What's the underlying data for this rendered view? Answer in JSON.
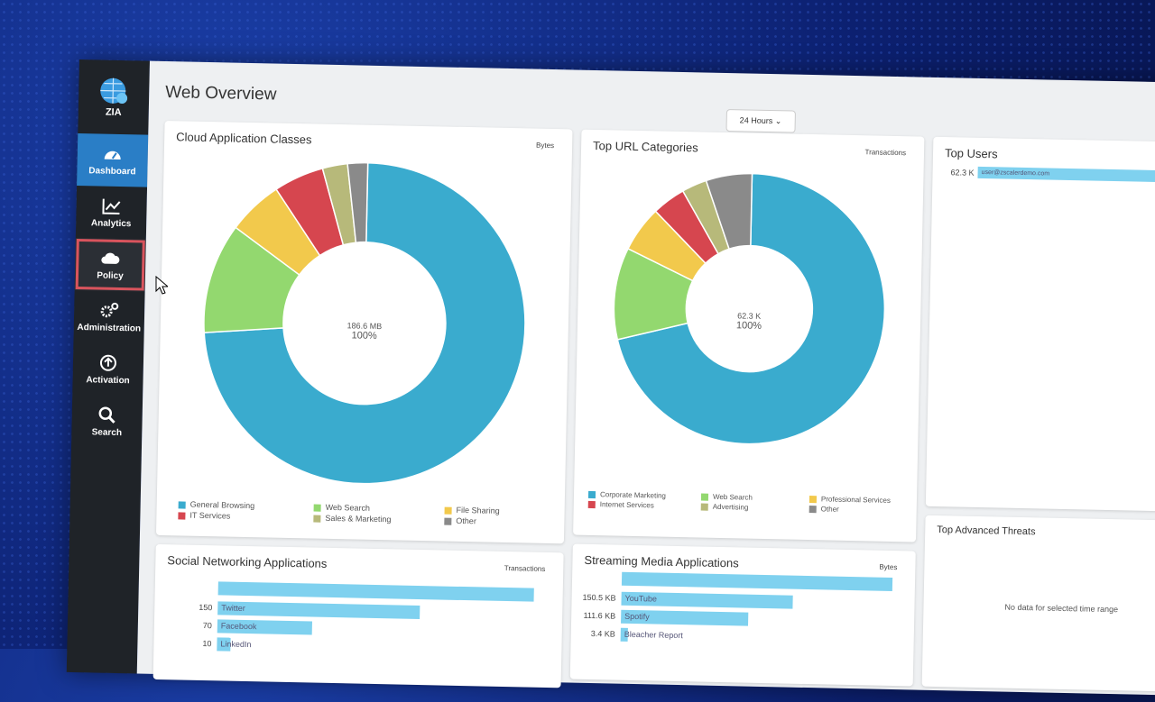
{
  "sidebar": {
    "logo": "ZIA",
    "items": [
      {
        "label": "Dashboard",
        "icon": "gauge-icon"
      },
      {
        "label": "Analytics",
        "icon": "chart-icon"
      },
      {
        "label": "Policy",
        "icon": "cloud-icon"
      },
      {
        "label": "Administration",
        "icon": "gears-icon"
      },
      {
        "label": "Activation",
        "icon": "upload-icon"
      },
      {
        "label": "Search",
        "icon": "search-icon"
      }
    ]
  },
  "header": {
    "title": "Web Overview",
    "time_range": "24 Hours"
  },
  "cloud_apps": {
    "title": "Cloud Application Classes",
    "unit": "Bytes",
    "total": "186.6 MB",
    "percent": "100%"
  },
  "url_categories": {
    "title": "Top URL Categories",
    "unit": "Transactions",
    "total": "62.3 K",
    "percent": "100%"
  },
  "top_users": {
    "title": "Top Users",
    "rows": [
      {
        "value": "62.3 K",
        "label": "user@zscalerdemo.com"
      }
    ]
  },
  "social": {
    "title": "Social Networking Applications",
    "unit": "Transactions"
  },
  "streaming": {
    "title": "Streaming Media Applications",
    "unit": "Bytes"
  },
  "threats": {
    "title": "Top Advanced Threats",
    "empty": "No data for selected time range"
  },
  "chart_data": [
    {
      "type": "pie",
      "title": "Cloud Application Classes",
      "categories": [
        "General Browsing",
        "Web Search",
        "File Sharing",
        "IT Services",
        "Sales & Marketing",
        "Other"
      ],
      "values": [
        73,
        11,
        5.5,
        5,
        2.5,
        2
      ],
      "colors": [
        "#3aabce",
        "#93d86f",
        "#f2c94c",
        "#d6464f",
        "#b7b97a",
        "#8a8a8a"
      ]
    },
    {
      "type": "pie",
      "title": "Top URL Categories",
      "categories": [
        "Corporate Marketing",
        "Web Search",
        "Professional Services",
        "Internet Services",
        "Advertising",
        "Other"
      ],
      "values": [
        71,
        11,
        5.5,
        4,
        3,
        5.5
      ],
      "colors": [
        "#3aabce",
        "#93d86f",
        "#f2c94c",
        "#d6464f",
        "#b7b97a",
        "#8a8a8a"
      ]
    },
    {
      "type": "bar",
      "title": "Social Networking Applications",
      "categories": [
        "Twitter",
        "Facebook",
        "LinkedIn"
      ],
      "labels": [
        "150",
        "70",
        "10"
      ],
      "values": [
        150,
        70,
        10
      ]
    },
    {
      "type": "bar",
      "title": "Streaming Media Applications",
      "categories": [
        "YouTube",
        "Spotify",
        "Bleacher Report"
      ],
      "labels": [
        "150.5 KB",
        "111.6 KB",
        "3.4 KB"
      ],
      "values": [
        150.5,
        111.6,
        3.4
      ]
    }
  ]
}
